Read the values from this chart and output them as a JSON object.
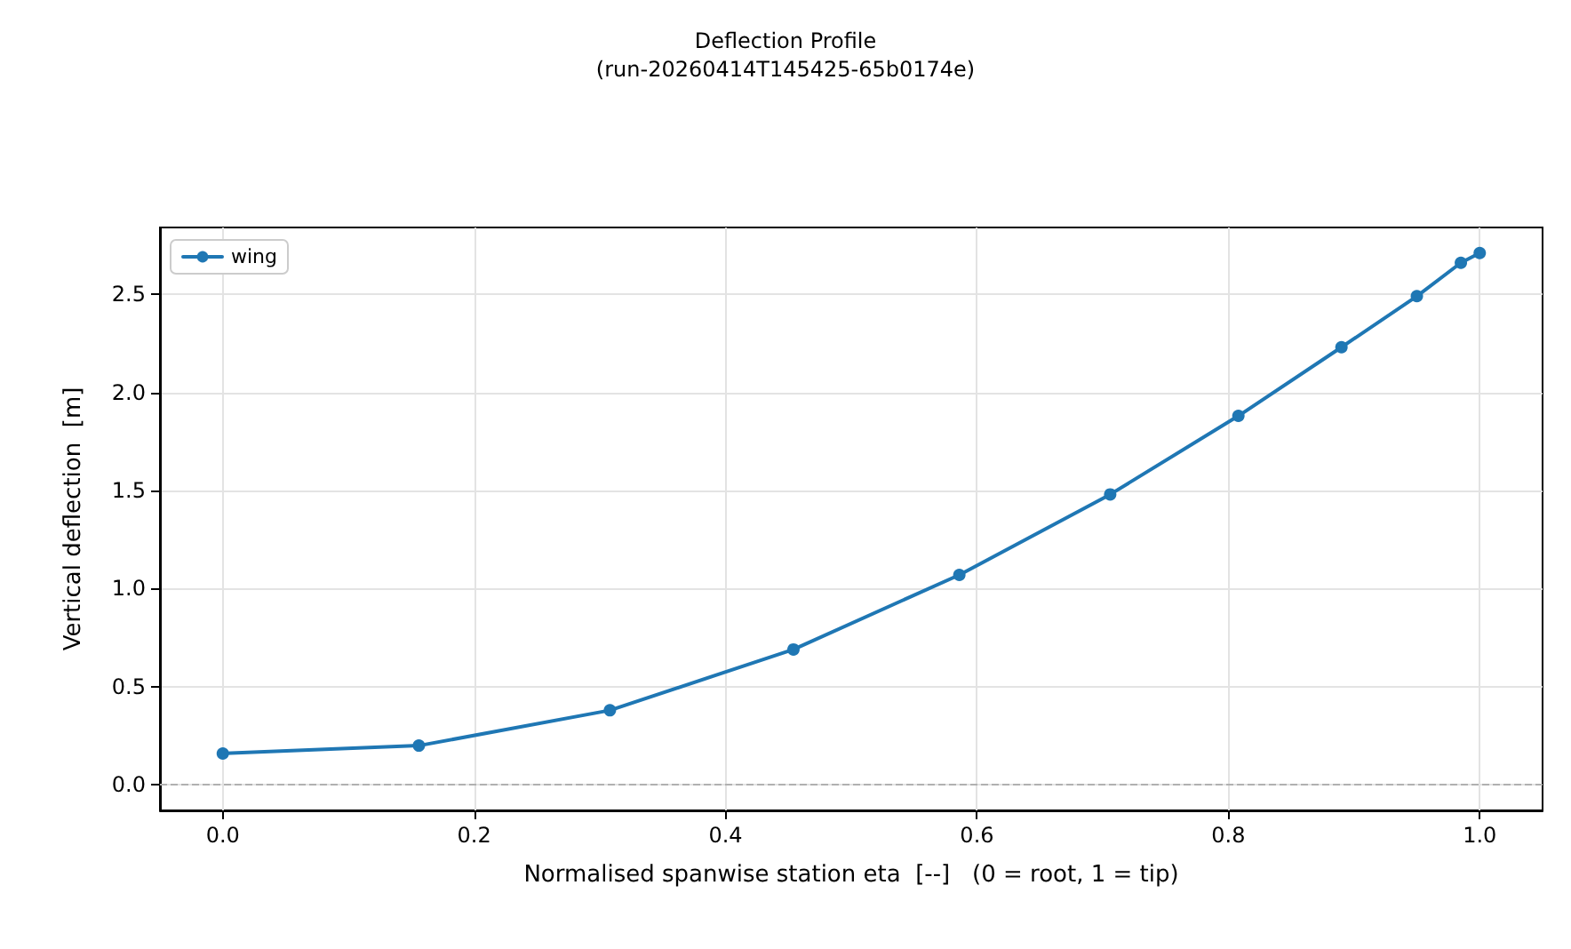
{
  "chart_data": {
    "type": "line",
    "title": "Deflection Profile",
    "subtitle": "(run-20260414T145425-65b0174e)",
    "xlabel": "Normalised spanwise station eta  [--]   (0 = root, 1 = tip)",
    "ylabel": "Vertical deflection  [m]",
    "x": [
      0.0,
      0.156,
      0.308,
      0.454,
      0.586,
      0.706,
      0.808,
      0.89,
      0.95,
      0.985,
      1.0
    ],
    "series": [
      {
        "name": "wing",
        "color": "#1f77b4",
        "values": [
          0.16,
          0.2,
          0.38,
          0.69,
          1.07,
          1.48,
          1.88,
          2.23,
          2.49,
          2.66,
          2.71
        ]
      }
    ],
    "xlim": [
      -0.05,
      1.05
    ],
    "xticks": [
      {
        "value": 0,
        "label": "0.0"
      },
      0.2,
      0.4,
      0.6,
      0.8,
      {
        "value": 1,
        "label": "1.0"
      }
    ],
    "ylim": [
      -0.13,
      2.84
    ],
    "yticks": [
      {
        "value": 0,
        "label": "0.0"
      },
      0.5,
      {
        "value": 1,
        "label": "1.0"
      },
      1.5,
      {
        "value": 2,
        "label": "2.0"
      },
      2.5
    ],
    "ref_lines": [
      {
        "axis": "y",
        "value": 0,
        "label": null,
        "color": "#b0b0b0",
        "line_style": "dashed"
      }
    ],
    "grid": true,
    "legend": "top left",
    "marker": "circle",
    "line_style": "solid"
  }
}
